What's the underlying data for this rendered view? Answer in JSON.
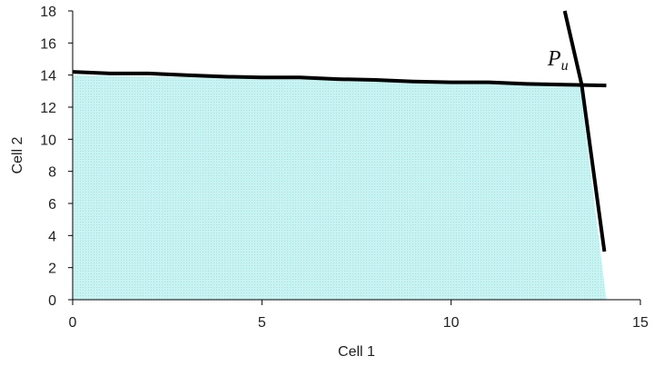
{
  "chart_data": {
    "type": "area",
    "title": "",
    "xlabel": "Cell 1",
    "ylabel": "Cell 2",
    "xlim": [
      0,
      15
    ],
    "ylim": [
      0,
      18
    ],
    "xticks": [
      0,
      5,
      10,
      15
    ],
    "yticks": [
      0,
      2,
      4,
      6,
      8,
      10,
      12,
      14,
      16,
      18
    ],
    "grid": false,
    "legend": "none",
    "fill_color": "#c7f3f3",
    "line_color": "#000000",
    "region": {
      "name": "",
      "x": [
        0,
        0,
        13.4,
        14.1,
        0
      ],
      "y": [
        0,
        14.0,
        13.4,
        0,
        0
      ]
    },
    "series": [
      {
        "name": "",
        "x": [
          0,
          1,
          2,
          3,
          4,
          5,
          6,
          7,
          8,
          9,
          10,
          11,
          12,
          13,
          14.1
        ],
        "y": [
          14.2,
          14.1,
          14.1,
          14.0,
          13.9,
          13.85,
          13.85,
          13.75,
          13.7,
          13.6,
          13.55,
          13.55,
          13.45,
          13.4,
          13.35
        ]
      },
      {
        "name": "",
        "x": [
          13.0,
          13.45,
          14.05
        ],
        "y": [
          18.0,
          13.4,
          3.0
        ]
      }
    ],
    "annotations": [
      {
        "base": "P",
        "sub": "u",
        "x": 12.55,
        "y": 14.6
      }
    ]
  }
}
